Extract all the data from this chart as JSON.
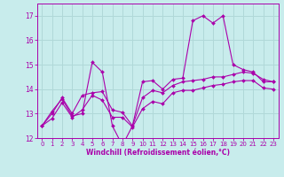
{
  "xlabel": "Windchill (Refroidissement éolien,°C)",
  "bg_color": "#c8ecec",
  "line_color": "#aa00aa",
  "grid_color": "#b0d8d8",
  "x_values": [
    0,
    1,
    2,
    3,
    4,
    5,
    6,
    7,
    8,
    9,
    10,
    11,
    12,
    13,
    14,
    15,
    16,
    17,
    18,
    19,
    20,
    21,
    22,
    23
  ],
  "series1": [
    12.5,
    13.1,
    13.6,
    12.9,
    13.0,
    15.1,
    14.7,
    12.5,
    11.7,
    12.5,
    14.3,
    14.35,
    14.0,
    14.4,
    14.45,
    16.8,
    17.0,
    16.7,
    17.0,
    15.0,
    14.8,
    14.7,
    14.3,
    14.3
  ],
  "series2": [
    12.5,
    13.0,
    13.65,
    13.0,
    13.75,
    13.85,
    13.9,
    13.15,
    13.05,
    12.5,
    13.65,
    13.95,
    13.85,
    14.15,
    14.3,
    14.35,
    14.4,
    14.5,
    14.5,
    14.6,
    14.7,
    14.65,
    14.4,
    14.3
  ],
  "series3": [
    12.5,
    12.8,
    13.45,
    12.85,
    13.15,
    13.75,
    13.55,
    12.85,
    12.85,
    12.45,
    13.2,
    13.5,
    13.4,
    13.85,
    13.95,
    13.95,
    14.05,
    14.15,
    14.2,
    14.3,
    14.35,
    14.35,
    14.05,
    14.0
  ],
  "ylim": [
    12,
    17.5
  ],
  "xlim": [
    -0.5,
    23.5
  ],
  "yticks": [
    12,
    13,
    14,
    15,
    16,
    17
  ],
  "xticks": [
    0,
    1,
    2,
    3,
    4,
    5,
    6,
    7,
    8,
    9,
    10,
    11,
    12,
    13,
    14,
    15,
    16,
    17,
    18,
    19,
    20,
    21,
    22,
    23
  ],
  "tick_fontsize": 5,
  "xlabel_fontsize": 5.5,
  "linewidth": 0.8,
  "markersize": 2.0
}
